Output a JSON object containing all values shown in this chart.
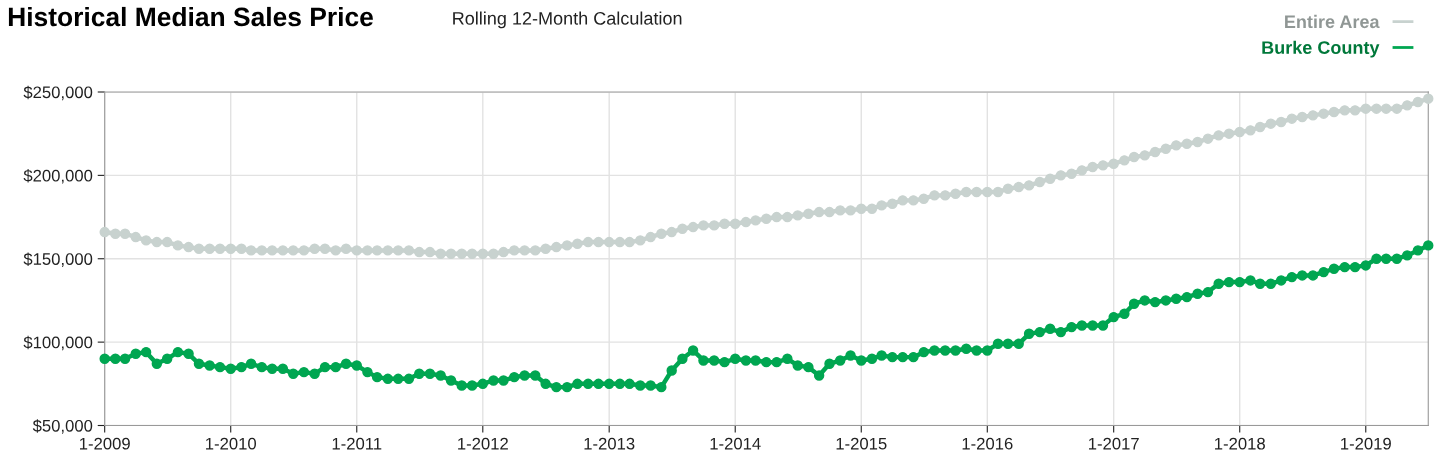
{
  "chart_data": {
    "type": "line",
    "title": "Historical Median Sales Price",
    "subtitle": "Rolling 12-Month Calculation",
    "x": [
      "2009-01",
      "2009-02",
      "2009-03",
      "2009-04",
      "2009-05",
      "2009-06",
      "2009-07",
      "2009-08",
      "2009-09",
      "2009-10",
      "2009-11",
      "2009-12",
      "2010-01",
      "2010-02",
      "2010-03",
      "2010-04",
      "2010-05",
      "2010-06",
      "2010-07",
      "2010-08",
      "2010-09",
      "2010-10",
      "2010-11",
      "2010-12",
      "2011-01",
      "2011-02",
      "2011-03",
      "2011-04",
      "2011-05",
      "2011-06",
      "2011-07",
      "2011-08",
      "2011-09",
      "2011-10",
      "2011-11",
      "2011-12",
      "2012-01",
      "2012-02",
      "2012-03",
      "2012-04",
      "2012-05",
      "2012-06",
      "2012-07",
      "2012-08",
      "2012-09",
      "2012-10",
      "2012-11",
      "2012-12",
      "2013-01",
      "2013-02",
      "2013-03",
      "2013-04",
      "2013-05",
      "2013-06",
      "2013-07",
      "2013-08",
      "2013-09",
      "2013-10",
      "2013-11",
      "2013-12",
      "2014-01",
      "2014-02",
      "2014-03",
      "2014-04",
      "2014-05",
      "2014-06",
      "2014-07",
      "2014-08",
      "2014-09",
      "2014-10",
      "2014-11",
      "2014-12",
      "2015-01",
      "2015-02",
      "2015-03",
      "2015-04",
      "2015-05",
      "2015-06",
      "2015-07",
      "2015-08",
      "2015-09",
      "2015-10",
      "2015-11",
      "2015-12",
      "2016-01",
      "2016-02",
      "2016-03",
      "2016-04",
      "2016-05",
      "2016-06",
      "2016-07",
      "2016-08",
      "2016-09",
      "2016-10",
      "2016-11",
      "2016-12",
      "2017-01",
      "2017-02",
      "2017-03",
      "2017-04",
      "2017-05",
      "2017-06",
      "2017-07",
      "2017-08",
      "2017-09",
      "2017-10",
      "2017-11",
      "2017-12",
      "2018-01",
      "2018-02",
      "2018-03",
      "2018-04",
      "2018-05",
      "2018-06",
      "2018-07",
      "2018-08",
      "2018-09",
      "2018-10",
      "2018-11",
      "2018-12",
      "2019-01",
      "2019-02",
      "2019-03",
      "2019-04",
      "2019-05",
      "2019-06",
      "2019-07"
    ],
    "series": [
      {
        "name": "Entire Area",
        "color": "#c8d2cf",
        "values": [
          166000,
          165000,
          165000,
          163000,
          161000,
          160000,
          160000,
          158000,
          157000,
          156000,
          156000,
          156000,
          156000,
          156000,
          155000,
          155000,
          155000,
          155000,
          155000,
          155000,
          156000,
          156000,
          155000,
          156000,
          155000,
          155000,
          155000,
          155000,
          155000,
          155000,
          154000,
          154000,
          153000,
          153000,
          153000,
          153000,
          153000,
          153000,
          154000,
          155000,
          155000,
          155000,
          156000,
          157000,
          158000,
          159000,
          160000,
          160000,
          160000,
          160000,
          160000,
          161000,
          163000,
          165000,
          166000,
          168000,
          169000,
          170000,
          170000,
          171000,
          171000,
          172000,
          173000,
          174000,
          175000,
          175000,
          176000,
          177000,
          178000,
          178000,
          179000,
          179000,
          180000,
          180000,
          182000,
          183000,
          185000,
          185000,
          186000,
          188000,
          188000,
          189000,
          190000,
          190000,
          190000,
          190000,
          192000,
          193000,
          194000,
          196000,
          198000,
          200000,
          201000,
          203000,
          205000,
          206000,
          207000,
          209000,
          211000,
          212000,
          214000,
          216000,
          218000,
          219000,
          220000,
          222000,
          224000,
          225000,
          226000,
          227000,
          229000,
          231000,
          232000,
          234000,
          235000,
          236000,
          237000,
          238000,
          239000,
          239000,
          240000,
          240000,
          240000,
          240000,
          242000,
          244000,
          246000
        ]
      },
      {
        "name": "Burke County",
        "color": "#00a651",
        "values": [
          90000,
          90000,
          90000,
          93000,
          94000,
          87000,
          90000,
          94000,
          93000,
          87000,
          86000,
          85000,
          84000,
          85000,
          87000,
          85000,
          84000,
          84000,
          81000,
          82000,
          81000,
          85000,
          85000,
          87000,
          86000,
          82000,
          79000,
          78000,
          78000,
          78000,
          81000,
          81000,
          80000,
          77000,
          74000,
          74000,
          75000,
          77000,
          77000,
          79000,
          80000,
          80000,
          75000,
          73000,
          73000,
          75000,
          75000,
          75000,
          75000,
          75000,
          75000,
          74000,
          74000,
          73000,
          83000,
          90000,
          95000,
          89000,
          89000,
          88000,
          90000,
          89000,
          89000,
          88000,
          88000,
          90000,
          86000,
          85000,
          80000,
          87000,
          89000,
          92000,
          89000,
          90000,
          92000,
          91000,
          91000,
          91000,
          94000,
          95000,
          95000,
          95000,
          96000,
          95000,
          95000,
          99000,
          99000,
          99000,
          105000,
          106000,
          108000,
          106000,
          109000,
          110000,
          110000,
          110000,
          115000,
          117000,
          123000,
          125000,
          124000,
          125000,
          126000,
          127000,
          129000,
          130000,
          135000,
          136000,
          136000,
          137000,
          135000,
          135000,
          137000,
          139000,
          140000,
          140000,
          142000,
          144000,
          145000,
          145000,
          146000,
          150000,
          150000,
          150000,
          152000,
          155000,
          158000
        ]
      }
    ],
    "xlim": [
      "2009-01",
      "2019-07"
    ],
    "xticks": [
      {
        "value": "2009-01",
        "label": "1-2009"
      },
      {
        "value": "2010-01",
        "label": "1-2010"
      },
      {
        "value": "2011-01",
        "label": "1-2011"
      },
      {
        "value": "2012-01",
        "label": "1-2012"
      },
      {
        "value": "2013-01",
        "label": "1-2013"
      },
      {
        "value": "2014-01",
        "label": "1-2014"
      },
      {
        "value": "2015-01",
        "label": "1-2015"
      },
      {
        "value": "2016-01",
        "label": "1-2016"
      },
      {
        "value": "2017-01",
        "label": "1-2017"
      },
      {
        "value": "2018-01",
        "label": "1-2018"
      },
      {
        "value": "2019-01",
        "label": "1-2019"
      }
    ],
    "ylim": [
      50000,
      250000
    ],
    "yticks": [
      {
        "value": 50000,
        "label": "$50,000"
      },
      {
        "value": 100000,
        "label": "$100,000"
      },
      {
        "value": 150000,
        "label": "$150,000"
      },
      {
        "value": 200000,
        "label": "$200,000"
      },
      {
        "value": 250000,
        "label": "$250,000"
      }
    ],
    "grid": true,
    "legend": "top right",
    "marker": "circle",
    "line_style": "solid"
  }
}
